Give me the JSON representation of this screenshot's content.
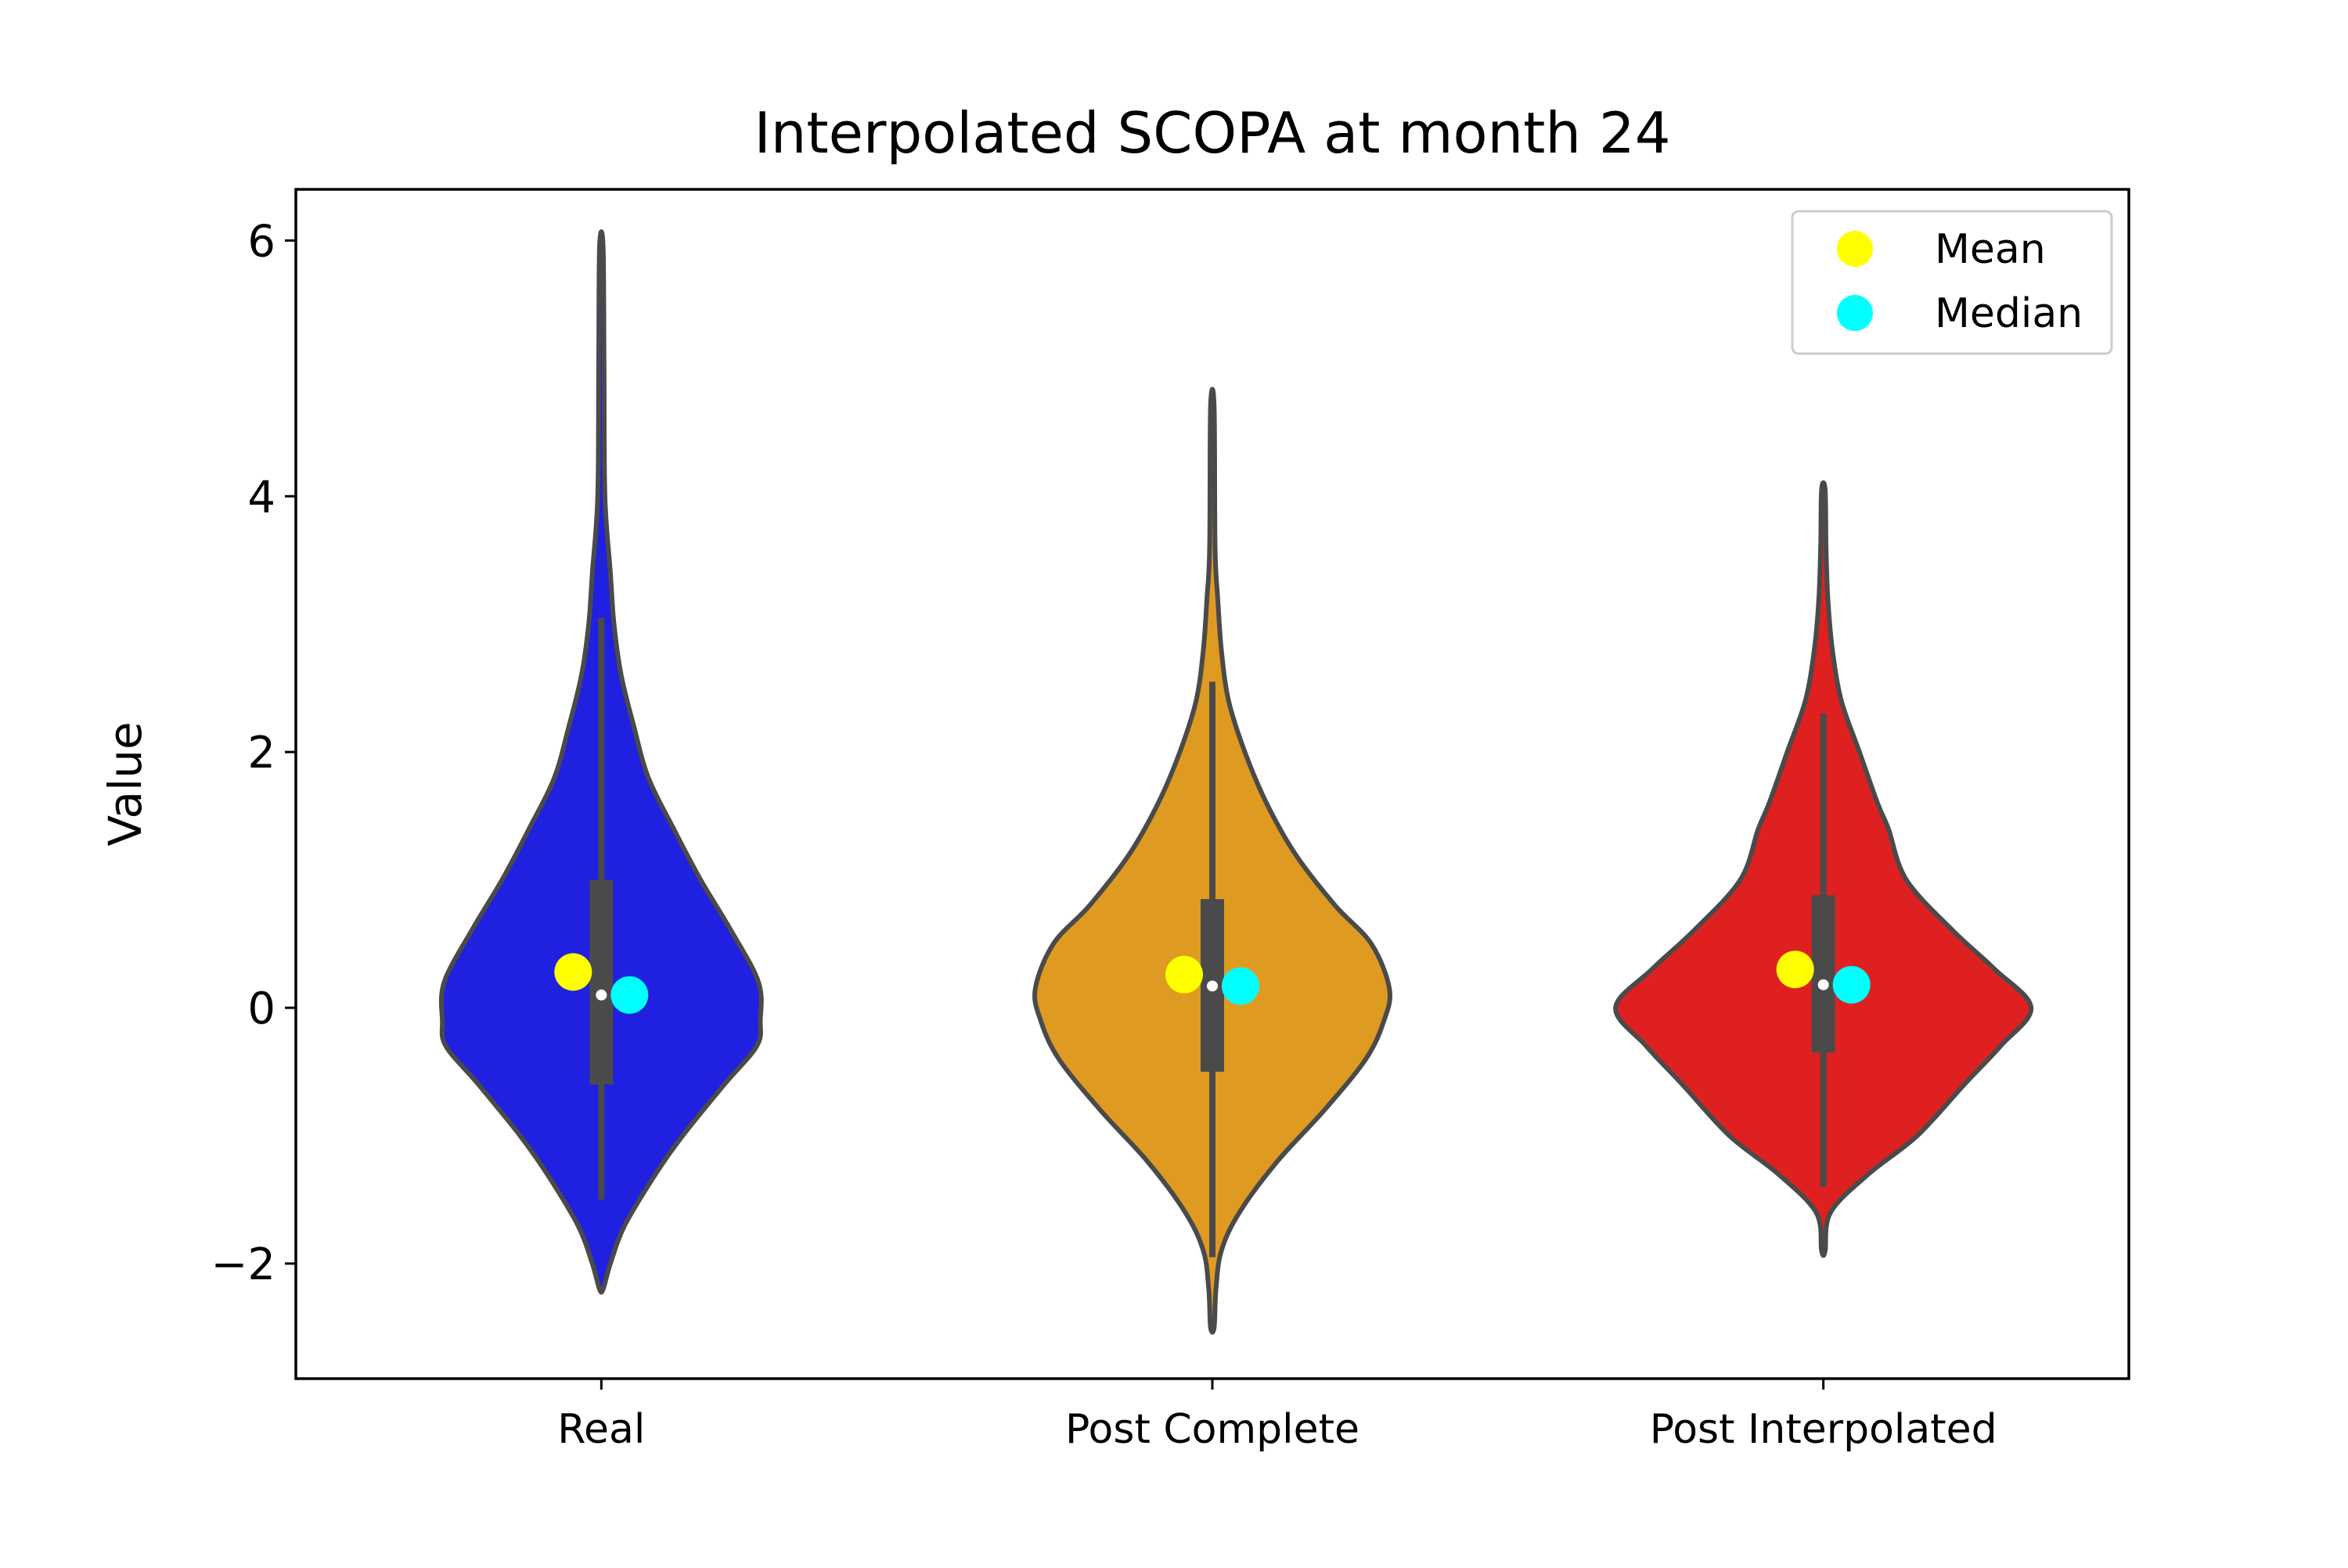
{
  "chart_data": {
    "type": "violin",
    "title": "Interpolated SCOPA at month 24",
    "xlabel": "",
    "ylabel": "Value",
    "categories": [
      "Real",
      "Post Complete",
      "Post Interpolated"
    ],
    "ylim": [
      -2.9,
      6.4
    ],
    "yticks": [
      -2,
      0,
      2,
      4,
      6
    ],
    "ytick_labels": [
      "−2",
      "0",
      "2",
      "4",
      "6"
    ],
    "grid": false,
    "legend": {
      "placement": "top-right",
      "entries": [
        {
          "label": "Mean",
          "color": "#ffff00"
        },
        {
          "label": "Median",
          "color": "#00ffff"
        }
      ]
    },
    "violin_outline_color": "#4a4a4a",
    "series": [
      {
        "category": "Real",
        "color": "#1f20e0",
        "min": -2.2,
        "max": 5.95,
        "q1": -0.6,
        "q3": 1.0,
        "whisker_low": -1.5,
        "whisker_high": 3.05,
        "median": 0.1,
        "mean": 0.28,
        "density": [
          [
            -2.2,
            0.01
          ],
          [
            -2.0,
            0.05
          ],
          [
            -1.7,
            0.13
          ],
          [
            -1.3,
            0.3
          ],
          [
            -1.0,
            0.45
          ],
          [
            -0.6,
            0.68
          ],
          [
            -0.3,
            0.86
          ],
          [
            -0.1,
            0.88
          ],
          [
            0.2,
            0.87
          ],
          [
            0.6,
            0.72
          ],
          [
            1.0,
            0.55
          ],
          [
            1.4,
            0.4
          ],
          [
            1.8,
            0.26
          ],
          [
            2.2,
            0.18
          ],
          [
            2.6,
            0.11
          ],
          [
            3.0,
            0.07
          ],
          [
            3.4,
            0.05
          ],
          [
            4.0,
            0.02
          ],
          [
            5.0,
            0.015
          ],
          [
            5.95,
            0.01
          ]
        ]
      },
      {
        "category": "Post Complete",
        "color": "#df9b21",
        "min": -2.5,
        "max": 4.7,
        "q1": -0.5,
        "q3": 0.85,
        "whisker_low": -1.95,
        "whisker_high": 2.55,
        "median": 0.17,
        "mean": 0.26,
        "density": [
          [
            -2.5,
            0.01
          ],
          [
            -2.2,
            0.02
          ],
          [
            -1.9,
            0.05
          ],
          [
            -1.6,
            0.15
          ],
          [
            -1.2,
            0.36
          ],
          [
            -0.8,
            0.62
          ],
          [
            -0.4,
            0.85
          ],
          [
            -0.1,
            0.95
          ],
          [
            0.15,
            0.98
          ],
          [
            0.5,
            0.88
          ],
          [
            0.8,
            0.68
          ],
          [
            1.2,
            0.46
          ],
          [
            1.6,
            0.3
          ],
          [
            2.0,
            0.18
          ],
          [
            2.4,
            0.09
          ],
          [
            2.8,
            0.05
          ],
          [
            3.2,
            0.03
          ],
          [
            3.6,
            0.015
          ],
          [
            4.7,
            0.01
          ]
        ]
      },
      {
        "category": "Post Interpolated",
        "color": "#df2020",
        "min": -1.9,
        "max": 4.05,
        "q1": -0.35,
        "q3": 0.88,
        "whisker_low": -1.4,
        "whisker_high": 2.3,
        "median": 0.18,
        "mean": 0.3,
        "density": [
          [
            -1.9,
            0.01
          ],
          [
            -1.6,
            0.04
          ],
          [
            -1.3,
            0.25
          ],
          [
            -1.0,
            0.52
          ],
          [
            -0.6,
            0.78
          ],
          [
            -0.3,
            0.98
          ],
          [
            0.0,
            1.15
          ],
          [
            0.3,
            0.95
          ],
          [
            0.6,
            0.72
          ],
          [
            1.0,
            0.46
          ],
          [
            1.4,
            0.36
          ],
          [
            1.6,
            0.3
          ],
          [
            2.0,
            0.2
          ],
          [
            2.4,
            0.1
          ],
          [
            2.8,
            0.05
          ],
          [
            3.2,
            0.025
          ],
          [
            3.6,
            0.015
          ],
          [
            4.05,
            0.01
          ]
        ]
      }
    ]
  }
}
